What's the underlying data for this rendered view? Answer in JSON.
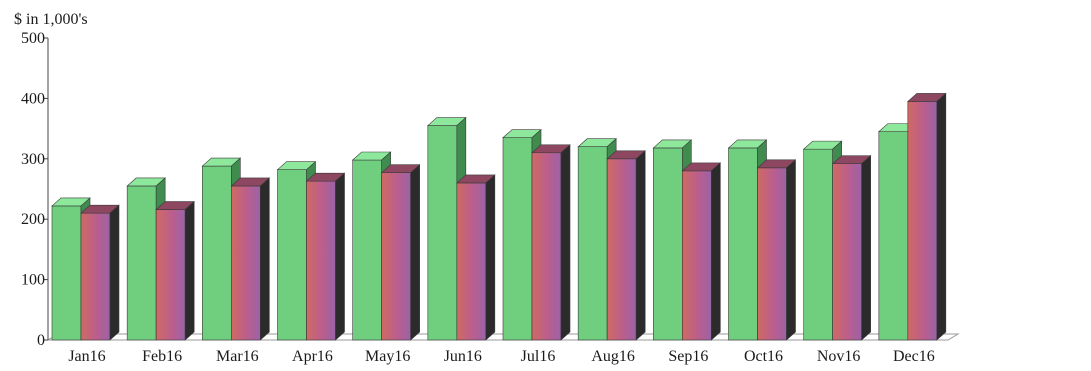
{
  "chart_data": {
    "type": "bar",
    "ylabel": "$ in 1,000's",
    "xlabel": "",
    "ylim": [
      0,
      500
    ],
    "yticks": [
      "0",
      "100",
      "200",
      "300",
      "400",
      "500"
    ],
    "grid": false,
    "legend": "none",
    "three_d": true,
    "categories": [
      "Jan16",
      "Feb16",
      "Mar16",
      "Apr16",
      "May16",
      "Jun16",
      "Jul16",
      "Aug16",
      "Sep16",
      "Oct16",
      "Nov16",
      "Dec16"
    ],
    "series": [
      {
        "color": "#6fcf7f",
        "values": [
          222,
          255,
          288,
          282,
          298,
          355,
          335,
          320,
          318,
          318,
          316,
          345
        ]
      },
      {
        "color": "#b85a86",
        "values": [
          210,
          216,
          255,
          263,
          277,
          260,
          310,
          300,
          280,
          285,
          292,
          395
        ]
      }
    ]
  }
}
